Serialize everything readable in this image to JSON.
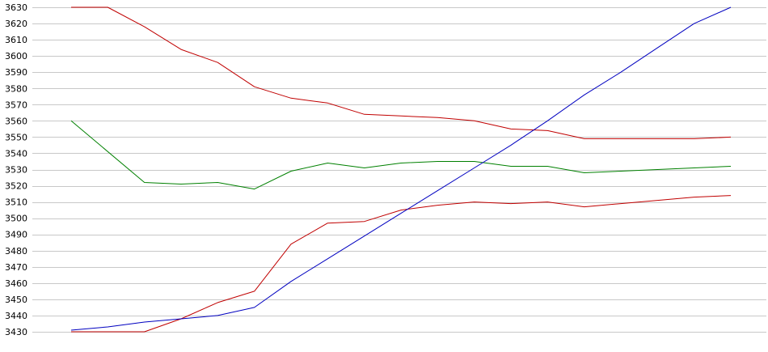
{
  "chart_data": {
    "type": "line",
    "title": "",
    "xlabel": "",
    "ylabel": "",
    "ylim": [
      3430,
      3630
    ],
    "yticks": [
      3430,
      3440,
      3450,
      3460,
      3470,
      3480,
      3490,
      3500,
      3510,
      3520,
      3530,
      3540,
      3550,
      3560,
      3570,
      3580,
      3590,
      3600,
      3610,
      3620,
      3630
    ],
    "grid": true,
    "legend": "none",
    "x": [
      1,
      2,
      3,
      4,
      5,
      6,
      7,
      8,
      9,
      10,
      11,
      12,
      13,
      14,
      15,
      16,
      17,
      18,
      19
    ],
    "series": [
      {
        "color": "#c00000",
        "values": [
          3630,
          3630,
          3618,
          3604,
          3596,
          3581,
          3574,
          3571,
          3564,
          3563,
          3562,
          3560,
          3555,
          3554,
          3549,
          3549,
          3549,
          3549,
          3550
        ]
      },
      {
        "color": "#008000",
        "values": [
          3560,
          null,
          3522,
          3521,
          3522,
          3518,
          3529,
          3534,
          3531,
          3534,
          3535,
          3535,
          3532,
          3532,
          3528,
          3529,
          3530,
          3531,
          3532
        ]
      },
      {
        "color": "#c00000",
        "values": [
          3430,
          3430,
          3430,
          3438,
          3448,
          3455,
          3484,
          3497,
          3498,
          3505,
          3508,
          3510,
          3509,
          3510,
          3507,
          3509,
          3511,
          3513,
          3514
        ]
      },
      {
        "color": "#0000c0",
        "values": [
          3431,
          3433,
          3436,
          3438,
          3440,
          3445,
          3461,
          3475,
          3489,
          3503,
          3517,
          3531,
          3545,
          3560,
          3576,
          3590,
          3605,
          3620,
          3630
        ]
      }
    ]
  }
}
